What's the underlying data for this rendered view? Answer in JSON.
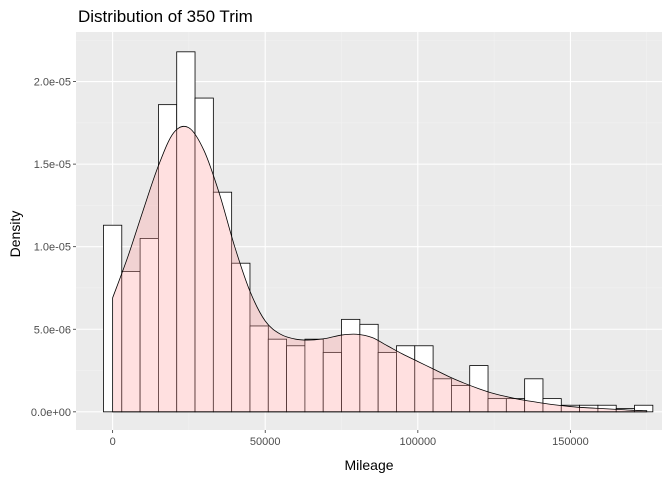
{
  "chart_data": {
    "type": "histogram",
    "title": "Distribution of 350 Trim",
    "xlabel": "Mileage",
    "ylabel": "Density",
    "xlim": [
      -12000,
      180000
    ],
    "ylim": [
      -1.1e-06,
      2.3e-05
    ],
    "x_ticks": [
      {
        "value": 0,
        "label": "0"
      },
      {
        "value": 50000,
        "label": "50000"
      },
      {
        "value": 100000,
        "label": "100000"
      },
      {
        "value": 150000,
        "label": "150000"
      }
    ],
    "y_ticks": [
      {
        "value": 0,
        "label": "0.0e+00"
      },
      {
        "value": 5e-06,
        "label": "5.0e-06"
      },
      {
        "value": 1e-05,
        "label": "1.0e-05"
      },
      {
        "value": 1.5e-05,
        "label": "1.5e-05"
      },
      {
        "value": 2e-05,
        "label": "2.0e-05"
      }
    ],
    "grid": true,
    "bin_width": 6000,
    "bins": [
      {
        "x0": -3000,
        "x1": 3000,
        "density": 1.13e-05
      },
      {
        "x0": 3000,
        "x1": 9000,
        "density": 8.5e-06
      },
      {
        "x0": 9000,
        "x1": 15000,
        "density": 1.05e-05
      },
      {
        "x0": 15000,
        "x1": 21000,
        "density": 1.86e-05
      },
      {
        "x0": 21000,
        "x1": 27000,
        "density": 2.18e-05
      },
      {
        "x0": 27000,
        "x1": 33000,
        "density": 1.9e-05
      },
      {
        "x0": 33000,
        "x1": 39000,
        "density": 1.33e-05
      },
      {
        "x0": 39000,
        "x1": 45000,
        "density": 9e-06
      },
      {
        "x0": 45000,
        "x1": 51000,
        "density": 5.2e-06
      },
      {
        "x0": 51000,
        "x1": 57000,
        "density": 4.4e-06
      },
      {
        "x0": 57000,
        "x1": 63000,
        "density": 4e-06
      },
      {
        "x0": 63000,
        "x1": 69000,
        "density": 4.4e-06
      },
      {
        "x0": 69000,
        "x1": 75000,
        "density": 3.6e-06
      },
      {
        "x0": 75000,
        "x1": 81000,
        "density": 5.6e-06
      },
      {
        "x0": 81000,
        "x1": 87000,
        "density": 5.3e-06
      },
      {
        "x0": 87000,
        "x1": 93000,
        "density": 3.6e-06
      },
      {
        "x0": 93000,
        "x1": 99000,
        "density": 4e-06
      },
      {
        "x0": 99000,
        "x1": 105000,
        "density": 4e-06
      },
      {
        "x0": 105000,
        "x1": 111000,
        "density": 2e-06
      },
      {
        "x0": 111000,
        "x1": 117000,
        "density": 1.6e-06
      },
      {
        "x0": 117000,
        "x1": 123000,
        "density": 2.8e-06
      },
      {
        "x0": 123000,
        "x1": 129000,
        "density": 8e-07
      },
      {
        "x0": 129000,
        "x1": 135000,
        "density": 8e-07
      },
      {
        "x0": 135000,
        "x1": 141000,
        "density": 2e-06
      },
      {
        "x0": 141000,
        "x1": 147000,
        "density": 8e-07
      },
      {
        "x0": 147000,
        "x1": 153000,
        "density": 4e-07
      },
      {
        "x0": 153000,
        "x1": 159000,
        "density": 4e-07
      },
      {
        "x0": 159000,
        "x1": 165000,
        "density": 4e-07
      },
      {
        "x0": 165000,
        "x1": 171000,
        "density": 2e-07
      },
      {
        "x0": 171000,
        "x1": 177000,
        "density": 4e-07
      }
    ],
    "density_curve": {
      "x": [
        0,
        5000,
        10000,
        15000,
        20000,
        25000,
        30000,
        35000,
        40000,
        45000,
        50000,
        55000,
        60000,
        65000,
        70000,
        75000,
        80000,
        85000,
        90000,
        95000,
        100000,
        105000,
        110000,
        115000,
        120000,
        125000,
        130000,
        135000,
        140000,
        145000,
        150000,
        155000,
        160000,
        165000,
        170000,
        175000
      ],
      "y": [
        6.9e-06,
        9.4e-06,
        1.22e-05,
        1.49e-05,
        1.69e-05,
        1.72e-05,
        1.58e-05,
        1.32e-05,
        1e-05,
        7.3e-06,
        5.5e-06,
        4.7e-06,
        4.4e-06,
        4.35e-06,
        4.45e-06,
        4.65e-06,
        4.7e-06,
        4.5e-06,
        4e-06,
        3.5e-06,
        3.05e-06,
        2.6e-06,
        2.15e-06,
        1.75e-06,
        1.4e-06,
        1.1e-06,
        8.8e-07,
        7e-07,
        5.5e-07,
        4.2e-07,
        3.2e-07,
        2.5e-07,
        2e-07,
        1.5e-07,
        1e-07,
        7e-08
      ]
    },
    "colors": {
      "panel_background": "#ebebeb",
      "grid_major": "#ffffff",
      "grid_minor": "#f2f2f2",
      "bar_fill": "#ffffff",
      "bar_stroke": "#000000",
      "density_fill": "#ff9999",
      "density_fill_opacity": 0.3,
      "density_stroke": "#000000",
      "tick_label": "#4d4d4d",
      "tick_mark": "#333333"
    }
  }
}
